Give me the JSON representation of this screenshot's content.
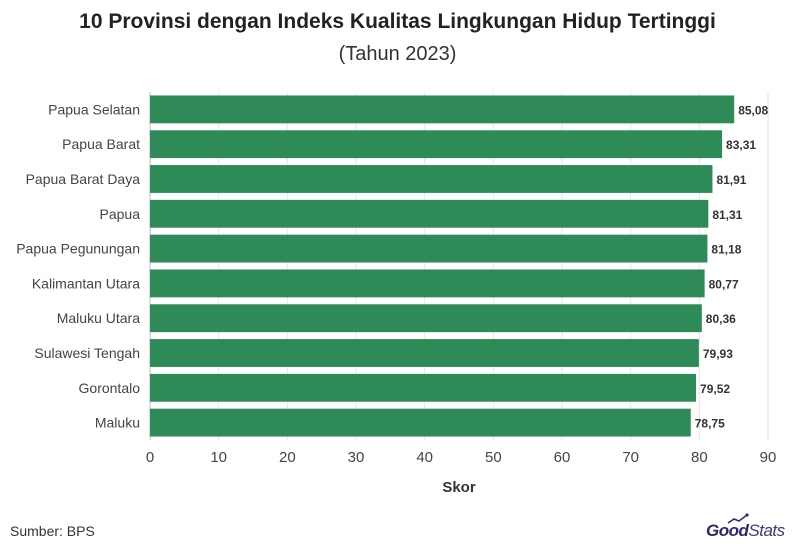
{
  "chart_data": {
    "type": "bar",
    "orientation": "horizontal",
    "title": "10 Provinsi dengan Indeks Kualitas Lingkungan Hidup Tertinggi",
    "subtitle": "(Tahun 2023)",
    "xlabel": "Skor",
    "ylabel": "",
    "xlim": [
      0,
      90
    ],
    "xticks": [
      0,
      10,
      20,
      30,
      40,
      50,
      60,
      70,
      80,
      90
    ],
    "grid": true,
    "bar_color": "#2e8b57",
    "categories": [
      "Papua Selatan",
      "Papua Barat",
      "Papua Barat Daya",
      "Papua",
      "Papua Pegunungan",
      "Kalimantan Utara",
      "Maluku Utara",
      "Sulawesi Tengah",
      "Gorontalo",
      "Maluku"
    ],
    "values": [
      85.08,
      83.31,
      81.91,
      81.31,
      81.18,
      80.77,
      80.36,
      79.93,
      79.52,
      78.75
    ],
    "value_labels": [
      "85,08",
      "83,31",
      "81,91",
      "81,31",
      "81,18",
      "80,77",
      "80,36",
      "79,93",
      "79,52",
      "78,75"
    ]
  },
  "footer": {
    "source": "Sumber: BPS",
    "logo_good": "Good",
    "logo_stats": "Stats"
  }
}
